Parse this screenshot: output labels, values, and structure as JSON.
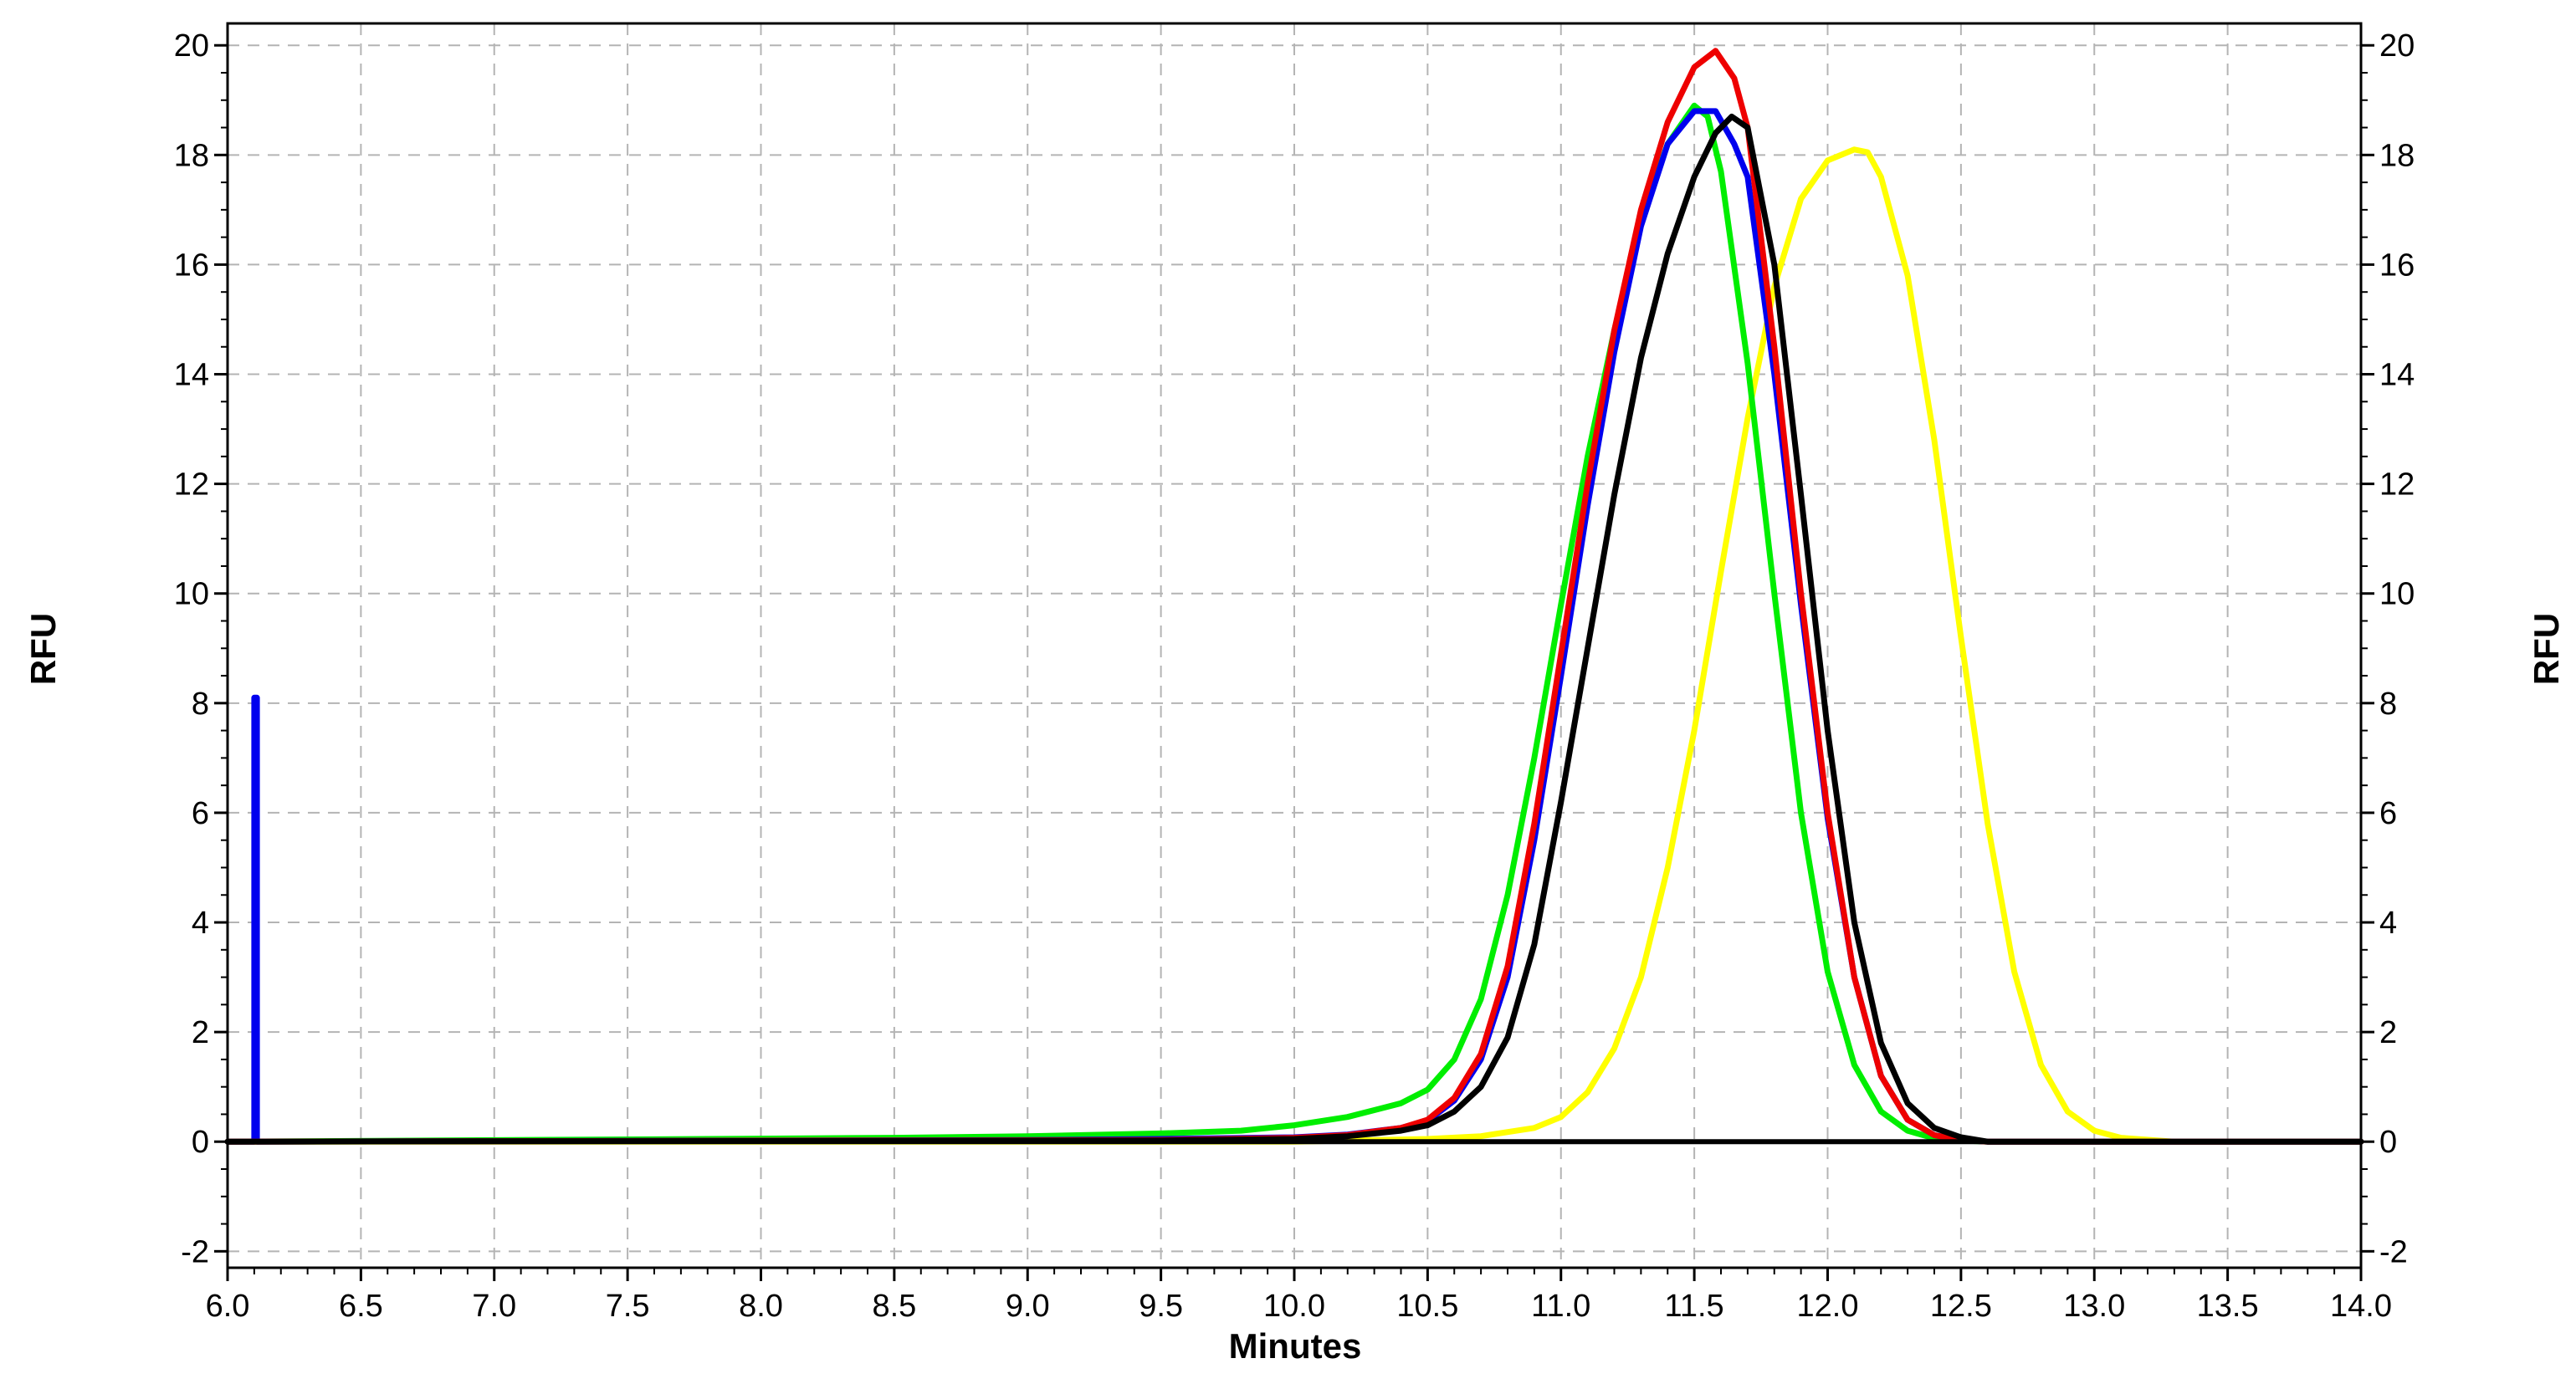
{
  "chart_data": {
    "type": "line",
    "xlabel": "Minutes",
    "ylabel": "RFU",
    "ylabel_right": "RFU",
    "xlim": [
      6.0,
      14.0
    ],
    "ylim": [
      -2.3,
      20.4
    ],
    "x_ticks": [
      6.0,
      6.5,
      7.0,
      7.5,
      8.0,
      8.5,
      9.0,
      9.5,
      10.0,
      10.5,
      11.0,
      11.5,
      12.0,
      12.5,
      13.0,
      13.5,
      14.0
    ],
    "x_tick_labels": [
      "6.0",
      "6.5",
      "7.0",
      "7.5",
      "8.0",
      "8.5",
      "9.0",
      "9.5",
      "10.0",
      "10.5",
      "11.0",
      "11.5",
      "12.0",
      "12.5",
      "13.0",
      "13.5",
      "14.0"
    ],
    "y_ticks": [
      -2,
      0,
      2,
      4,
      6,
      8,
      10,
      12,
      14,
      16,
      18,
      20
    ],
    "y_tick_labels": [
      "-2",
      "0",
      "2",
      "4",
      "6",
      "8",
      "10",
      "12",
      "14",
      "16",
      "18",
      "20"
    ],
    "grid": true,
    "legend": "none",
    "series": [
      {
        "color": "#00ee00",
        "x": [
          6.0,
          7.8,
          8.5,
          9.0,
          9.5,
          9.8,
          10.0,
          10.2,
          10.4,
          10.5,
          10.6,
          10.7,
          10.8,
          10.9,
          11.0,
          11.1,
          11.2,
          11.3,
          11.4,
          11.5,
          11.55,
          11.6,
          11.7,
          11.8,
          11.9,
          12.0,
          12.1,
          12.2,
          12.3,
          12.4,
          12.5,
          12.6,
          14.0
        ],
        "y": [
          0,
          0.05,
          0.07,
          0.1,
          0.15,
          0.2,
          0.3,
          0.45,
          0.7,
          0.95,
          1.5,
          2.6,
          4.5,
          7.0,
          9.8,
          12.5,
          14.8,
          16.8,
          18.2,
          18.9,
          18.7,
          17.7,
          14.2,
          10.0,
          6.0,
          3.1,
          1.4,
          0.55,
          0.2,
          0.06,
          0.02,
          0.0,
          0.0
        ]
      },
      {
        "color": "#ee0000",
        "x": [
          6.0,
          9.5,
          10.0,
          10.2,
          10.4,
          10.5,
          10.6,
          10.7,
          10.8,
          10.9,
          11.0,
          11.1,
          11.2,
          11.3,
          11.4,
          11.5,
          11.58,
          11.65,
          11.7,
          11.8,
          11.9,
          12.0,
          12.1,
          12.2,
          12.3,
          12.4,
          12.5,
          12.6,
          14.0
        ],
        "y": [
          0,
          0.03,
          0.07,
          0.12,
          0.25,
          0.4,
          0.8,
          1.6,
          3.2,
          5.8,
          8.9,
          12.0,
          14.8,
          17.0,
          18.6,
          19.6,
          19.9,
          19.4,
          18.5,
          14.5,
          10.0,
          6.0,
          3.0,
          1.2,
          0.4,
          0.12,
          0.03,
          0.0,
          0.0
        ]
      },
      {
        "color": "#0000ee",
        "x": [
          6.0,
          6.1,
          6.1,
          6.11,
          6.11,
          9.0,
          9.5,
          10.0,
          10.2,
          10.4,
          10.5,
          10.6,
          10.7,
          10.8,
          10.9,
          11.0,
          11.1,
          11.2,
          11.3,
          11.4,
          11.5,
          11.58,
          11.65,
          11.7,
          11.8,
          11.9,
          12.0,
          12.1,
          12.2,
          12.3,
          12.4,
          12.5,
          12.6,
          14.0
        ],
        "y": [
          0,
          0,
          8.1,
          8.1,
          0,
          0.03,
          0.05,
          0.08,
          0.13,
          0.25,
          0.38,
          0.75,
          1.5,
          3.0,
          5.5,
          8.5,
          11.6,
          14.4,
          16.7,
          18.2,
          18.8,
          18.8,
          18.2,
          17.6,
          14.0,
          9.8,
          5.9,
          3.0,
          1.2,
          0.4,
          0.12,
          0.03,
          0.0,
          0.0
        ]
      },
      {
        "color": "#000000",
        "x": [
          6.0,
          9.5,
          10.0,
          10.2,
          10.4,
          10.5,
          10.6,
          10.7,
          10.8,
          10.9,
          11.0,
          11.1,
          11.2,
          11.3,
          11.4,
          11.5,
          11.58,
          11.64,
          11.7,
          11.8,
          11.9,
          12.0,
          12.1,
          12.2,
          12.3,
          12.4,
          12.5,
          12.6,
          14.0
        ],
        "y": [
          0,
          0.02,
          0.05,
          0.1,
          0.2,
          0.3,
          0.55,
          1.0,
          1.9,
          3.6,
          6.2,
          9.0,
          11.8,
          14.3,
          16.2,
          17.6,
          18.4,
          18.7,
          18.5,
          16.0,
          11.8,
          7.5,
          4.0,
          1.8,
          0.7,
          0.25,
          0.08,
          0.0,
          0.0
        ]
      },
      {
        "color": "#ffff00",
        "x": [
          6.0,
          10.0,
          10.5,
          10.7,
          10.9,
          11.0,
          11.1,
          11.2,
          11.3,
          11.4,
          11.5,
          11.6,
          11.7,
          11.8,
          11.9,
          12.0,
          12.1,
          12.15,
          12.2,
          12.3,
          12.4,
          12.5,
          12.6,
          12.7,
          12.8,
          12.9,
          13.0,
          13.1,
          13.3,
          14.0
        ],
        "y": [
          0,
          0.0,
          0.05,
          0.1,
          0.25,
          0.45,
          0.9,
          1.7,
          3.0,
          5.0,
          7.5,
          10.4,
          13.2,
          15.6,
          17.2,
          17.9,
          18.1,
          18.05,
          17.6,
          15.8,
          12.8,
          9.2,
          5.8,
          3.1,
          1.4,
          0.55,
          0.2,
          0.07,
          0.0,
          0.0
        ]
      }
    ]
  }
}
